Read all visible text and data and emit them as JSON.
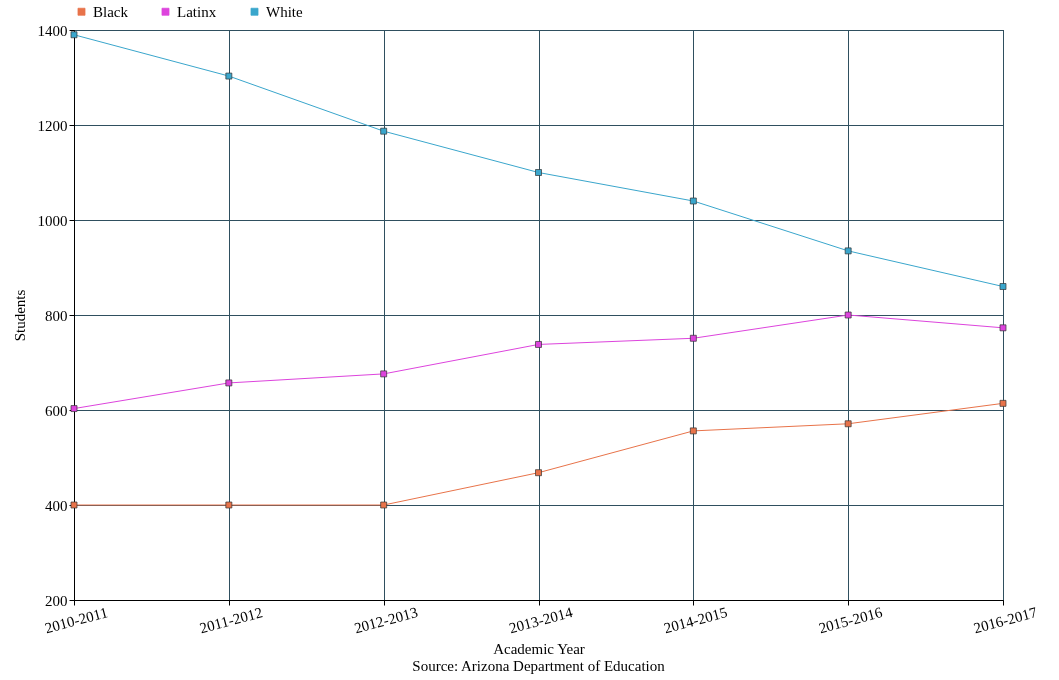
{
  "chart_data": {
    "type": "line",
    "xlabel": "Academic Year",
    "ylabel": "Students",
    "annotations": [
      "Source: Arizona Department of Education"
    ],
    "categories": [
      "2010-2011",
      "2011-2012",
      "2012-2013",
      "2013-2014",
      "2014-2015",
      "2015-2016",
      "2016-2017"
    ],
    "series": [
      {
        "name": "Black",
        "color": "#e8734a",
        "values": [
          400,
          400,
          400,
          468,
          556,
          571,
          614
        ]
      },
      {
        "name": "Latinx",
        "color": "#dd44dd",
        "values": [
          603,
          657,
          676,
          738,
          751,
          800,
          773
        ]
      },
      {
        "name": "White",
        "color": "#3aa6cc",
        "values": [
          1390,
          1303,
          1187,
          1100,
          1040,
          935,
          860
        ]
      }
    ],
    "ylim": [
      200,
      1400
    ],
    "yticks": [
      200,
      400,
      600,
      800,
      1000,
      1200,
      1400
    ],
    "grid": true,
    "legend": "top left",
    "marker": "square",
    "line_style": "solid"
  }
}
